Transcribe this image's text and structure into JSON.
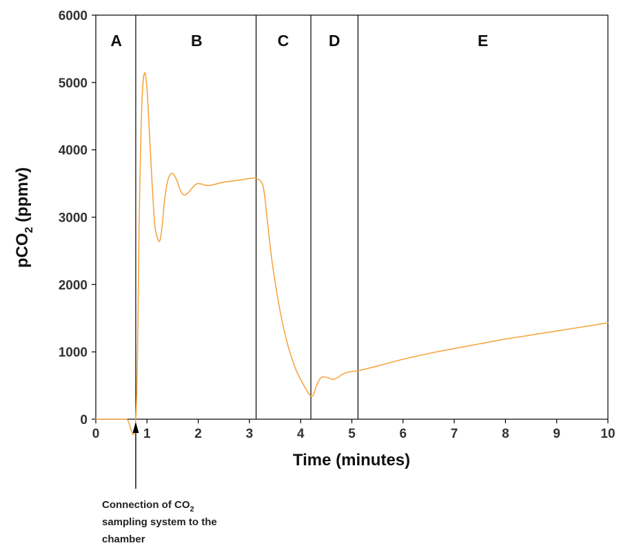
{
  "chart_data": {
    "type": "line",
    "title": "",
    "xlabel": "Time (minutes)",
    "ylabel": {
      "pre": "pCO",
      "sub": "2",
      "post": " (ppmv)"
    },
    "xlim": [
      0,
      10
    ],
    "ylim": [
      0,
      6000
    ],
    "x_ticks": [
      "0",
      "1",
      "2",
      "3",
      "4",
      "5",
      "6",
      "7",
      "8",
      "9",
      "10"
    ],
    "y_ticks": [
      "0",
      "1000",
      "2000",
      "3000",
      "4000",
      "5000",
      "6000"
    ],
    "grid": false,
    "legend": "none",
    "line_color": "#F7A541",
    "boundary_color": "#000000",
    "boundaries": [
      0.78,
      3.13,
      4.2,
      5.12
    ],
    "regions": [
      {
        "label": "A",
        "x": 0.4
      },
      {
        "label": "B",
        "x": 1.97
      },
      {
        "label": "C",
        "x": 3.66
      },
      {
        "label": "D",
        "x": 4.66
      },
      {
        "label": "E",
        "x": 7.56
      }
    ],
    "series": [
      {
        "points": [
          [
            0.0,
            0
          ],
          [
            0.3,
            0
          ],
          [
            0.6,
            0
          ],
          [
            0.78,
            0
          ],
          [
            0.85,
            3100
          ],
          [
            0.9,
            4700
          ],
          [
            0.95,
            5140
          ],
          [
            1.0,
            4900
          ],
          [
            1.05,
            4200
          ],
          [
            1.1,
            3500
          ],
          [
            1.15,
            2900
          ],
          [
            1.2,
            2700
          ],
          [
            1.25,
            2650
          ],
          [
            1.3,
            2900
          ],
          [
            1.35,
            3300
          ],
          [
            1.42,
            3580
          ],
          [
            1.5,
            3650
          ],
          [
            1.58,
            3550
          ],
          [
            1.65,
            3400
          ],
          [
            1.72,
            3330
          ],
          [
            1.8,
            3360
          ],
          [
            1.9,
            3450
          ],
          [
            2.0,
            3500
          ],
          [
            2.2,
            3470
          ],
          [
            2.5,
            3520
          ],
          [
            2.8,
            3550
          ],
          [
            3.05,
            3580
          ],
          [
            3.15,
            3570
          ],
          [
            3.25,
            3500
          ],
          [
            3.3,
            3300
          ],
          [
            3.35,
            2950
          ],
          [
            3.45,
            2300
          ],
          [
            3.6,
            1600
          ],
          [
            3.75,
            1100
          ],
          [
            3.9,
            750
          ],
          [
            4.05,
            520
          ],
          [
            4.15,
            390
          ],
          [
            4.2,
            345
          ],
          [
            4.25,
            360
          ],
          [
            4.3,
            480
          ],
          [
            4.38,
            600
          ],
          [
            4.45,
            630
          ],
          [
            4.55,
            610
          ],
          [
            4.62,
            590
          ],
          [
            4.7,
            610
          ],
          [
            4.85,
            680
          ],
          [
            5.0,
            710
          ],
          [
            5.12,
            720
          ],
          [
            5.5,
            790
          ],
          [
            6.0,
            890
          ],
          [
            6.5,
            975
          ],
          [
            7.0,
            1050
          ],
          [
            7.5,
            1120
          ],
          [
            8.0,
            1190
          ],
          [
            8.5,
            1250
          ],
          [
            9.0,
            1310
          ],
          [
            9.5,
            1370
          ],
          [
            10.0,
            1430
          ]
        ]
      }
    ],
    "annotation": {
      "x": 0.78,
      "lines": [
        {
          "pre": "Connection of CO",
          "sub": "2"
        },
        {
          "pre": "sampling system to the",
          "sub": ""
        },
        {
          "pre": "chamber",
          "sub": ""
        }
      ]
    }
  }
}
